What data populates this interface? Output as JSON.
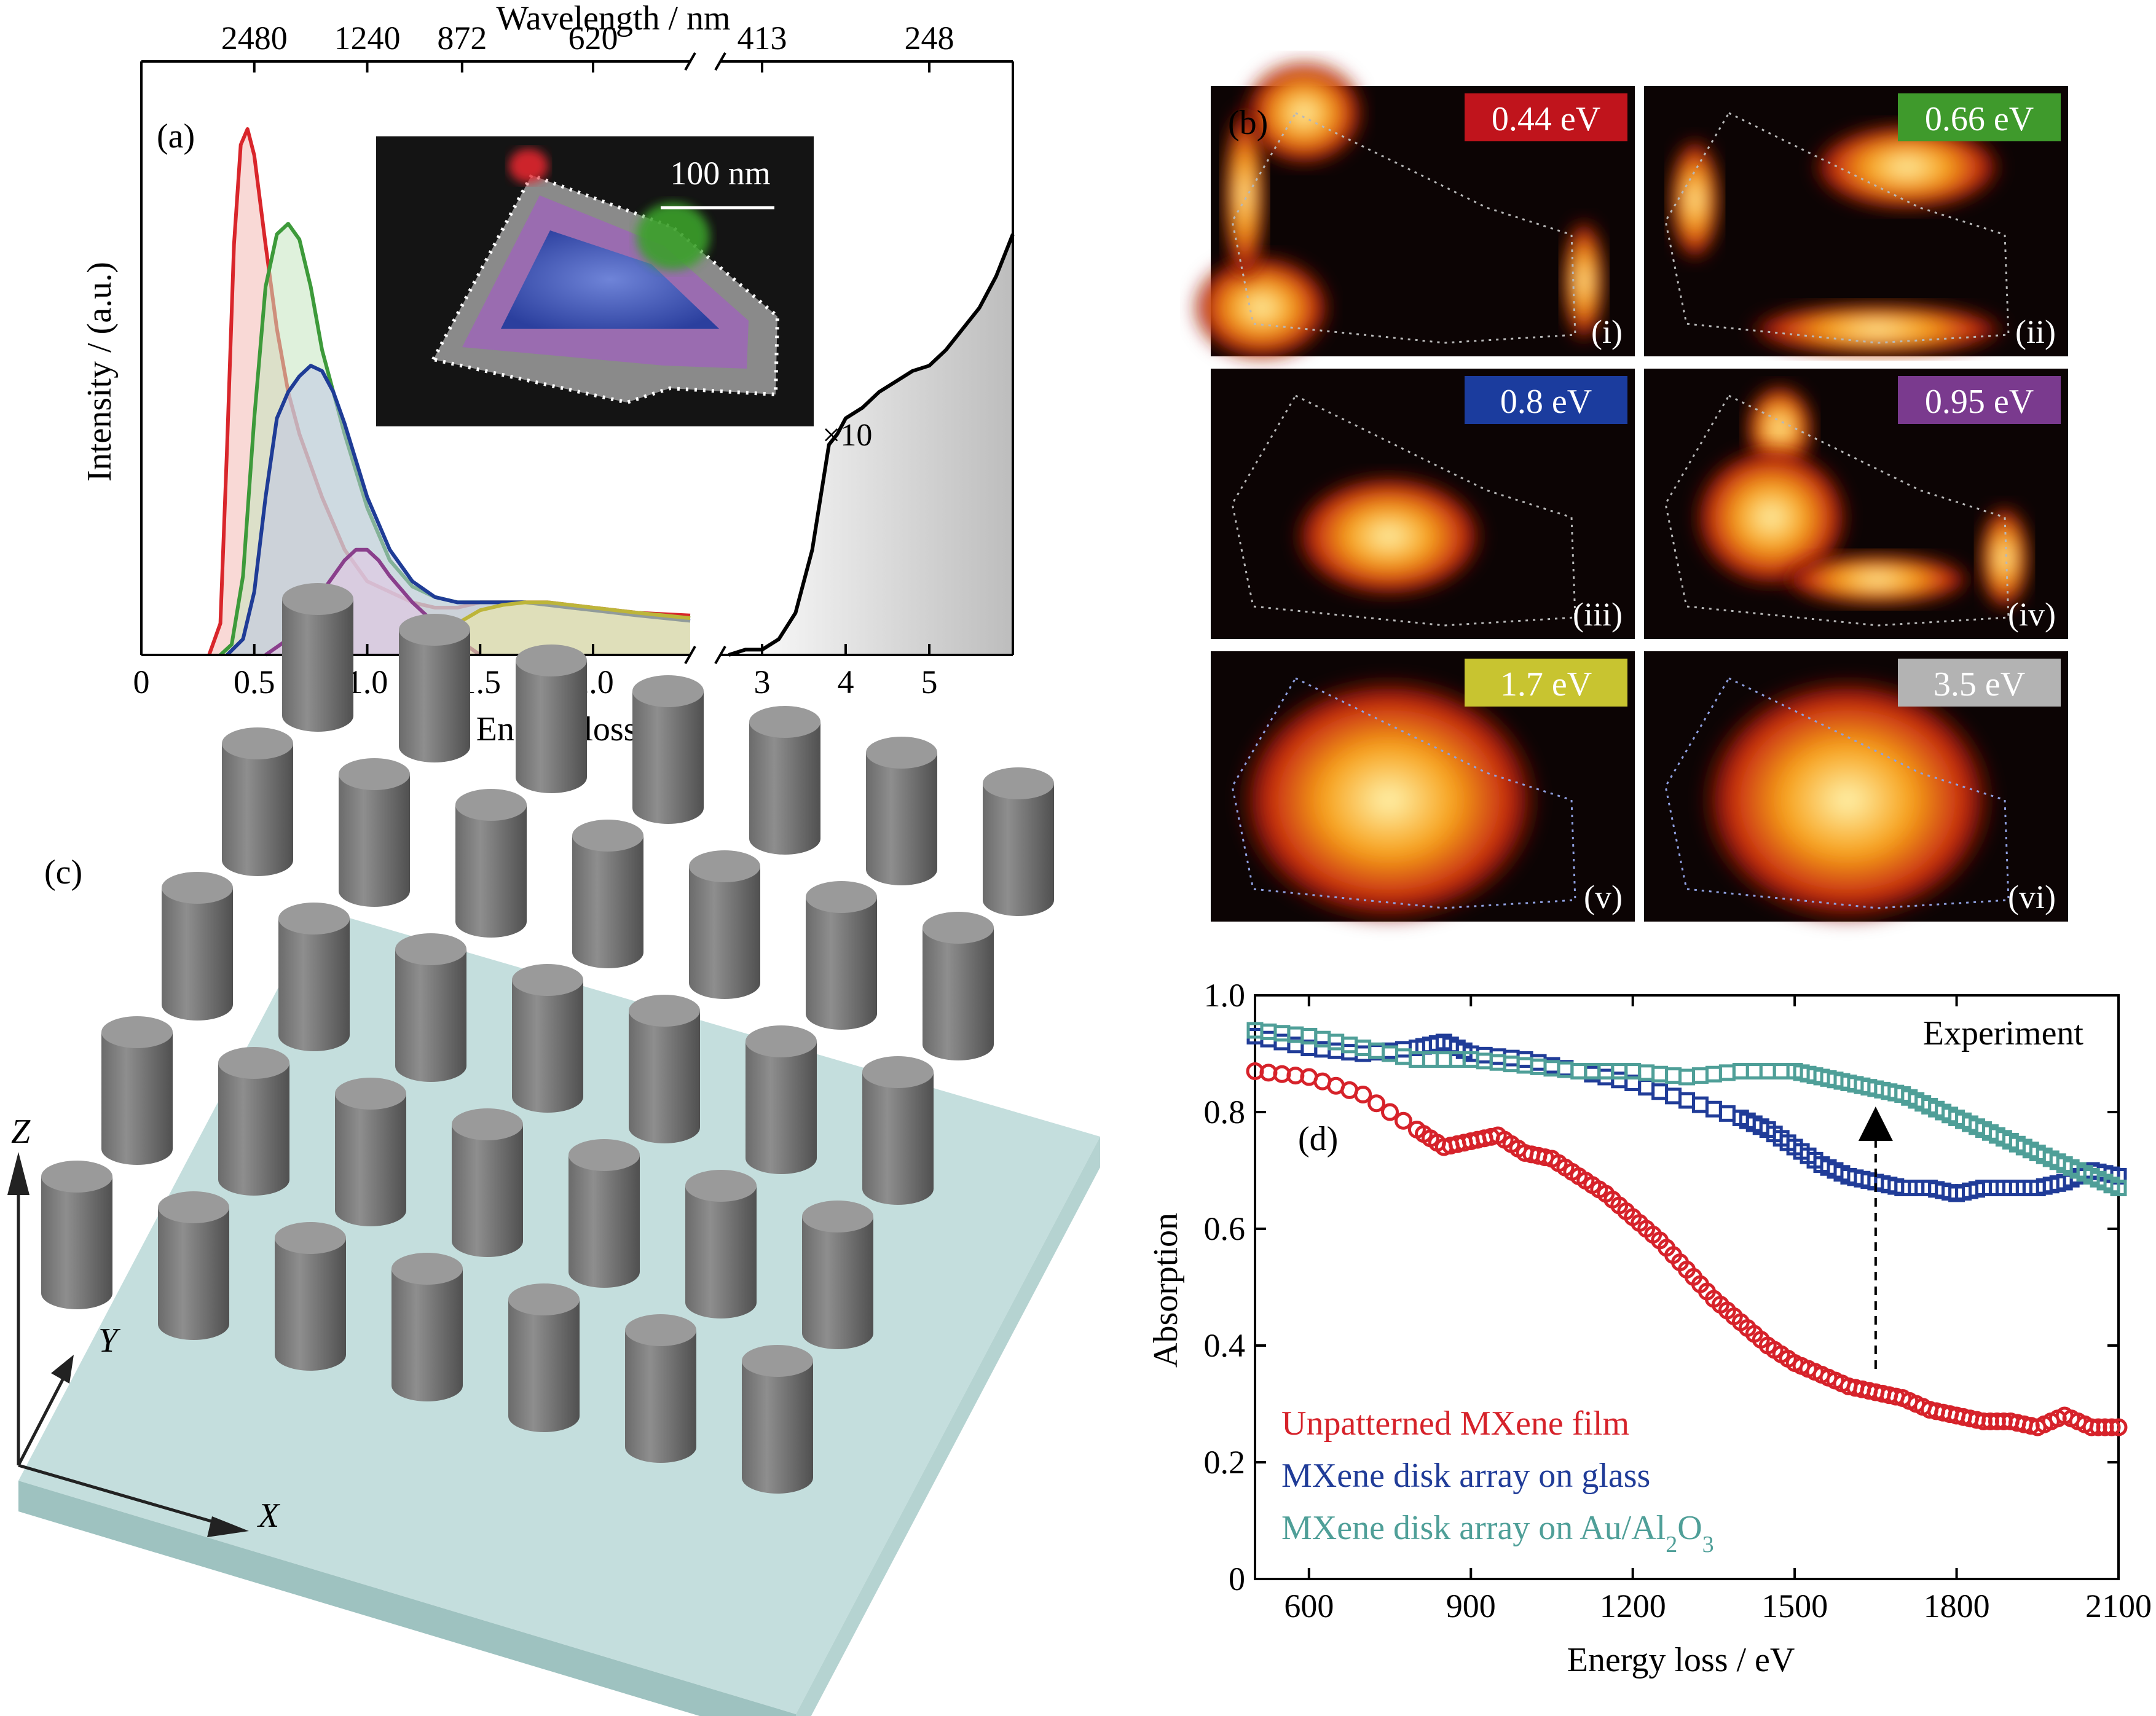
{
  "panels": {
    "a": {
      "label": "(a)",
      "inset_scale": "100 nm",
      "multiplier": "×10"
    },
    "b": {
      "label": "(b)",
      "maps": [
        {
          "energy": "0.44 eV",
          "roman": "(i)",
          "color": "#c0141c",
          "text_color": "#ffffff"
        },
        {
          "energy": "0.66 eV",
          "roman": "(ii)",
          "color": "#3f9a2c",
          "text_color": "#ffffff"
        },
        {
          "energy": "0.8 eV",
          "roman": "(iii)",
          "color": "#1b3c9e",
          "text_color": "#ffffff"
        },
        {
          "energy": "0.95 eV",
          "roman": "(iv)",
          "color": "#7a3a8e",
          "text_color": "#ffffff"
        },
        {
          "energy": "1.7 eV",
          "roman": "(v)",
          "color": "#c8c430",
          "text_color": "#ffffff"
        },
        {
          "energy": "3.5 eV",
          "roman": "(vi)",
          "color": "#b3b3b3",
          "text_color": "#ffffff"
        }
      ]
    },
    "c": {
      "label": "(c)",
      "axis_z": "Z",
      "axis_y": "Y",
      "axis_x": "X",
      "rows": 5,
      "cols": 7
    },
    "d": {
      "label": "(d)",
      "note": "Experiment"
    }
  },
  "chart_data": [
    {
      "id": "a",
      "type": "line",
      "xlabel": "Energy loss / eV",
      "ylabel": "Intensity / (a.u.)",
      "top_axis_label": "Wavelength / nm",
      "top_ticks": [
        {
          "label": "2480",
          "at_ev": 0.5
        },
        {
          "label": "1240",
          "at_ev": 1.0
        },
        {
          "label": "872",
          "at_ev": 1.42
        },
        {
          "label": "620",
          "at_ev": 2.0
        },
        {
          "label": "413",
          "at_ev": 3.0
        },
        {
          "label": "248",
          "at_ev": 5.0
        }
      ],
      "xticks_left": [
        0,
        0.5,
        1.0,
        1.5,
        2.0
      ],
      "xtick_labels_left": [
        "0",
        "0.5",
        "1.0",
        "1.5",
        "2.0"
      ],
      "xticks_right": [
        3,
        4,
        5
      ],
      "xtick_labels_right": [
        "3",
        "4",
        "5"
      ],
      "xlim_left": [
        0,
        2.43
      ],
      "xlim_right": [
        2.5,
        6.0
      ],
      "ylim": [
        0,
        1
      ],
      "axis_break": true,
      "series": [
        {
          "color": "#d9262b",
          "fill": "#f4b9b4",
          "x": [
            0.3,
            0.35,
            0.38,
            0.41,
            0.44,
            0.47,
            0.5,
            0.55,
            0.6,
            0.65,
            0.7,
            0.8,
            0.9,
            1.0,
            1.1,
            1.2,
            1.3,
            1.4,
            1.5,
            1.6,
            1.7,
            1.8,
            1.9,
            2.0,
            2.2,
            2.43
          ],
          "y": [
            0.0,
            0.06,
            0.4,
            0.78,
            0.97,
            1.0,
            0.95,
            0.78,
            0.62,
            0.5,
            0.42,
            0.3,
            0.2,
            0.14,
            0.12,
            0.1,
            0.09,
            0.09,
            0.1,
            0.1,
            0.1,
            0.1,
            0.095,
            0.09,
            0.08,
            0.075
          ]
        },
        {
          "color": "#3d9a3a",
          "fill": "#c5e5bf",
          "x": [
            0.35,
            0.4,
            0.45,
            0.5,
            0.55,
            0.6,
            0.65,
            0.7,
            0.75,
            0.8,
            0.9,
            1.0,
            1.1,
            1.2,
            1.3,
            1.4,
            1.5,
            1.6,
            1.7,
            1.8,
            1.9,
            2.0,
            2.2,
            2.43
          ],
          "y": [
            0.0,
            0.02,
            0.15,
            0.45,
            0.7,
            0.8,
            0.82,
            0.79,
            0.7,
            0.58,
            0.42,
            0.28,
            0.18,
            0.13,
            0.11,
            0.1,
            0.1,
            0.1,
            0.1,
            0.095,
            0.09,
            0.085,
            0.08,
            0.07
          ]
        },
        {
          "color": "#1f3c96",
          "fill": "#bfc6e6",
          "x": [
            0.38,
            0.45,
            0.5,
            0.55,
            0.6,
            0.65,
            0.7,
            0.75,
            0.8,
            0.85,
            0.9,
            1.0,
            1.1,
            1.2,
            1.3,
            1.4,
            1.5,
            1.6,
            1.7,
            1.8,
            1.9,
            2.0,
            2.2,
            2.43
          ],
          "y": [
            0.0,
            0.03,
            0.12,
            0.3,
            0.45,
            0.5,
            0.53,
            0.55,
            0.54,
            0.5,
            0.44,
            0.3,
            0.2,
            0.14,
            0.11,
            0.1,
            0.1,
            0.1,
            0.1,
            0.095,
            0.09,
            0.085,
            0.075,
            0.065
          ]
        },
        {
          "color": "#8a3f8c",
          "fill": "#e3c6e6",
          "x": [
            0.55,
            0.65,
            0.75,
            0.85,
            0.9,
            0.95,
            1.0,
            1.05,
            1.1,
            1.2,
            1.3,
            1.4,
            1.5
          ],
          "y": [
            0.0,
            0.03,
            0.09,
            0.15,
            0.18,
            0.2,
            0.2,
            0.18,
            0.15,
            0.1,
            0.06,
            0.03,
            0.0
          ]
        },
        {
          "color": "#bdb53a",
          "fill": "#eeeaa0",
          "x": [
            1.2,
            1.3,
            1.4,
            1.5,
            1.6,
            1.7,
            1.8,
            1.9,
            2.0,
            2.2,
            2.43
          ],
          "y": [
            0.0,
            0.03,
            0.06,
            0.085,
            0.095,
            0.1,
            0.1,
            0.095,
            0.09,
            0.08,
            0.07
          ]
        },
        {
          "color": "#000000",
          "fill": "#d9d9d9",
          "segment": "right",
          "x": [
            2.6,
            2.8,
            3.0,
            3.2,
            3.4,
            3.6,
            3.7,
            3.8,
            3.9,
            4.0,
            4.2,
            4.4,
            4.6,
            4.8,
            5.0,
            5.2,
            5.4,
            5.6,
            5.8,
            6.0
          ],
          "y": [
            0.0,
            0.01,
            0.01,
            0.03,
            0.08,
            0.2,
            0.3,
            0.4,
            0.42,
            0.45,
            0.47,
            0.5,
            0.52,
            0.54,
            0.55,
            0.58,
            0.62,
            0.66,
            0.72,
            0.8
          ]
        }
      ]
    },
    {
      "id": "d",
      "type": "scatter",
      "xlabel": "Energy loss / eV",
      "ylabel": "Absorption",
      "xlim": [
        500,
        2100
      ],
      "ylim": [
        0,
        1.0
      ],
      "xticks": [
        600,
        900,
        1200,
        1500,
        1800,
        2100
      ],
      "yticks": [
        0,
        0.2,
        0.4,
        0.6,
        0.8,
        1.0
      ],
      "xtick_labels": [
        "600",
        "900",
        "1200",
        "1500",
        "1800",
        "2100"
      ],
      "ytick_labels": [
        "0",
        "0.2",
        "0.4",
        "0.6",
        "0.8",
        "1.0"
      ],
      "legend_position": "bottom-left",
      "series": [
        {
          "name": "Unpatterned MXene film",
          "color": "#d6222a",
          "marker": "circle",
          "x": [
            500,
            600,
            700,
            800,
            850,
            900,
            950,
            1000,
            1050,
            1100,
            1150,
            1200,
            1250,
            1300,
            1350,
            1400,
            1450,
            1500,
            1550,
            1600,
            1650,
            1700,
            1750,
            1800,
            1850,
            1900,
            1950,
            2000,
            2050,
            2100
          ],
          "y": [
            0.87,
            0.86,
            0.83,
            0.77,
            0.74,
            0.75,
            0.76,
            0.73,
            0.72,
            0.69,
            0.66,
            0.62,
            0.58,
            0.53,
            0.48,
            0.44,
            0.4,
            0.37,
            0.35,
            0.33,
            0.32,
            0.31,
            0.29,
            0.28,
            0.27,
            0.27,
            0.26,
            0.28,
            0.26,
            0.26
          ]
        },
        {
          "name": "MXene disk array on glass",
          "color": "#203c98",
          "marker": "square",
          "x": [
            500,
            600,
            700,
            800,
            850,
            900,
            1000,
            1100,
            1200,
            1300,
            1400,
            1450,
            1500,
            1550,
            1600,
            1650,
            1700,
            1750,
            1800,
            1850,
            1900,
            1950,
            2000,
            2050,
            2100
          ],
          "y": [
            0.93,
            0.91,
            0.9,
            0.91,
            0.92,
            0.9,
            0.89,
            0.87,
            0.85,
            0.82,
            0.79,
            0.77,
            0.74,
            0.71,
            0.69,
            0.68,
            0.67,
            0.67,
            0.66,
            0.67,
            0.67,
            0.67,
            0.68,
            0.7,
            0.69
          ]
        },
        {
          "name": "MXene disk array on Au/Al2O3",
          "color": "#4f9f98",
          "marker": "square",
          "x": [
            500,
            600,
            700,
            800,
            900,
            1000,
            1100,
            1200,
            1300,
            1400,
            1500,
            1550,
            1600,
            1650,
            1700,
            1750,
            1800,
            1850,
            1900,
            1950,
            2000,
            2050,
            2100
          ],
          "y": [
            0.94,
            0.93,
            0.91,
            0.89,
            0.89,
            0.88,
            0.87,
            0.87,
            0.86,
            0.87,
            0.87,
            0.86,
            0.85,
            0.84,
            0.83,
            0.81,
            0.79,
            0.77,
            0.75,
            0.73,
            0.71,
            0.69,
            0.67
          ]
        }
      ]
    }
  ]
}
